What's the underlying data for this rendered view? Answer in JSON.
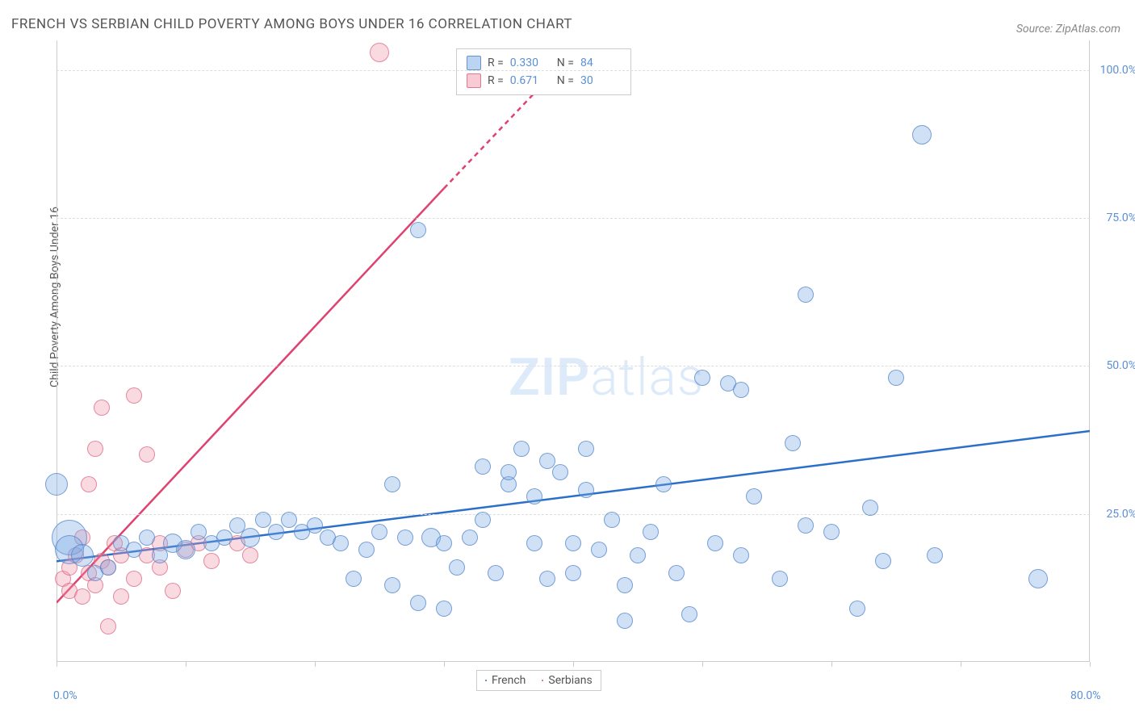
{
  "title": "FRENCH VS SERBIAN CHILD POVERTY AMONG BOYS UNDER 16 CORRELATION CHART",
  "source": "Source: ZipAtlas.com",
  "ylabel": "Child Poverty Among Boys Under 16",
  "watermark_bold": "ZIP",
  "watermark_light": "atlas",
  "chart": {
    "type": "scatter",
    "xlim": [
      0,
      80
    ],
    "ylim": [
      0,
      105
    ],
    "x_ticks": [
      0,
      10,
      20,
      30,
      40,
      50,
      60,
      70,
      80
    ],
    "x_tick_labels": {
      "0": "0.0%",
      "80": "80.0%"
    },
    "y_ticks": [
      25,
      50,
      75,
      100
    ],
    "y_tick_labels": {
      "25": "25.0%",
      "50": "50.0%",
      "75": "75.0%",
      "100": "100.0%"
    },
    "grid_color": "#dddddd",
    "background_color": "#ffffff",
    "series": {
      "french": {
        "label": "French",
        "color_fill": "rgba(120,170,230,0.35)",
        "color_stroke": "rgba(80,130,200,0.7)",
        "trend_color": "#2c6fc9",
        "trend": {
          "x1": 0,
          "y1": 17,
          "x2": 80,
          "y2": 39
        },
        "R": "0.330",
        "N": "84",
        "points": [
          {
            "x": 0,
            "y": 30,
            "r": 14
          },
          {
            "x": 1,
            "y": 21,
            "r": 22
          },
          {
            "x": 1,
            "y": 19,
            "r": 18
          },
          {
            "x": 2,
            "y": 18,
            "r": 14
          },
          {
            "x": 3,
            "y": 15,
            "r": 10
          },
          {
            "x": 4,
            "y": 16,
            "r": 10
          },
          {
            "x": 5,
            "y": 20,
            "r": 10
          },
          {
            "x": 6,
            "y": 19,
            "r": 10
          },
          {
            "x": 7,
            "y": 21,
            "r": 10
          },
          {
            "x": 8,
            "y": 18,
            "r": 10
          },
          {
            "x": 9,
            "y": 20,
            "r": 12
          },
          {
            "x": 10,
            "y": 19,
            "r": 12
          },
          {
            "x": 11,
            "y": 22,
            "r": 10
          },
          {
            "x": 12,
            "y": 20,
            "r": 10
          },
          {
            "x": 13,
            "y": 21,
            "r": 10
          },
          {
            "x": 14,
            "y": 23,
            "r": 10
          },
          {
            "x": 15,
            "y": 21,
            "r": 12
          },
          {
            "x": 16,
            "y": 24,
            "r": 10
          },
          {
            "x": 17,
            "y": 22,
            "r": 10
          },
          {
            "x": 18,
            "y": 24,
            "r": 10
          },
          {
            "x": 19,
            "y": 22,
            "r": 10
          },
          {
            "x": 20,
            "y": 23,
            "r": 10
          },
          {
            "x": 21,
            "y": 21,
            "r": 10
          },
          {
            "x": 22,
            "y": 20,
            "r": 10
          },
          {
            "x": 23,
            "y": 14,
            "r": 10
          },
          {
            "x": 24,
            "y": 19,
            "r": 10
          },
          {
            "x": 25,
            "y": 22,
            "r": 10
          },
          {
            "x": 26,
            "y": 13,
            "r": 10
          },
          {
            "x": 26,
            "y": 30,
            "r": 10
          },
          {
            "x": 27,
            "y": 21,
            "r": 10
          },
          {
            "x": 28,
            "y": 10,
            "r": 10
          },
          {
            "x": 28,
            "y": 73,
            "r": 10
          },
          {
            "x": 29,
            "y": 21,
            "r": 12
          },
          {
            "x": 30,
            "y": 9,
            "r": 10
          },
          {
            "x": 30,
            "y": 20,
            "r": 10
          },
          {
            "x": 31,
            "y": 16,
            "r": 10
          },
          {
            "x": 32,
            "y": 21,
            "r": 10
          },
          {
            "x": 33,
            "y": 24,
            "r": 10
          },
          {
            "x": 33,
            "y": 33,
            "r": 10
          },
          {
            "x": 34,
            "y": 15,
            "r": 10
          },
          {
            "x": 35,
            "y": 30,
            "r": 10
          },
          {
            "x": 35,
            "y": 32,
            "r": 10
          },
          {
            "x": 36,
            "y": 36,
            "r": 10
          },
          {
            "x": 37,
            "y": 20,
            "r": 10
          },
          {
            "x": 37,
            "y": 28,
            "r": 10
          },
          {
            "x": 38,
            "y": 14,
            "r": 10
          },
          {
            "x": 38,
            "y": 34,
            "r": 10
          },
          {
            "x": 39,
            "y": 32,
            "r": 10
          },
          {
            "x": 40,
            "y": 15,
            "r": 10
          },
          {
            "x": 40,
            "y": 20,
            "r": 10
          },
          {
            "x": 41,
            "y": 29,
            "r": 10
          },
          {
            "x": 41,
            "y": 36,
            "r": 10
          },
          {
            "x": 42,
            "y": 19,
            "r": 10
          },
          {
            "x": 43,
            "y": 24,
            "r": 10
          },
          {
            "x": 44,
            "y": 13,
            "r": 10
          },
          {
            "x": 44,
            "y": 7,
            "r": 10
          },
          {
            "x": 45,
            "y": 18,
            "r": 10
          },
          {
            "x": 46,
            "y": 22,
            "r": 10
          },
          {
            "x": 47,
            "y": 30,
            "r": 10
          },
          {
            "x": 48,
            "y": 15,
            "r": 10
          },
          {
            "x": 49,
            "y": 8,
            "r": 10
          },
          {
            "x": 50,
            "y": 48,
            "r": 10
          },
          {
            "x": 51,
            "y": 20,
            "r": 10
          },
          {
            "x": 52,
            "y": 47,
            "r": 10
          },
          {
            "x": 53,
            "y": 18,
            "r": 10
          },
          {
            "x": 53,
            "y": 46,
            "r": 10
          },
          {
            "x": 54,
            "y": 28,
            "r": 10
          },
          {
            "x": 56,
            "y": 14,
            "r": 10
          },
          {
            "x": 57,
            "y": 37,
            "r": 10
          },
          {
            "x": 58,
            "y": 23,
            "r": 10
          },
          {
            "x": 58,
            "y": 62,
            "r": 10
          },
          {
            "x": 60,
            "y": 22,
            "r": 10
          },
          {
            "x": 62,
            "y": 9,
            "r": 10
          },
          {
            "x": 63,
            "y": 26,
            "r": 10
          },
          {
            "x": 64,
            "y": 17,
            "r": 10
          },
          {
            "x": 65,
            "y": 48,
            "r": 10
          },
          {
            "x": 67,
            "y": 89,
            "r": 12
          },
          {
            "x": 68,
            "y": 18,
            "r": 10
          },
          {
            "x": 76,
            "y": 14,
            "r": 12
          }
        ]
      },
      "serbian": {
        "label": "Serbians",
        "color_fill": "rgba(240,150,170,0.35)",
        "color_stroke": "rgba(220,100,130,0.7)",
        "trend_color": "#e0426f",
        "trend": {
          "x1": 0,
          "y1": 10,
          "x2": 30,
          "y2": 80
        },
        "trend_dashed_extension": {
          "x1": 30,
          "y1": 80,
          "x2": 40,
          "y2": 103
        },
        "R": "0.671",
        "N": "30",
        "points": [
          {
            "x": 0.5,
            "y": 14,
            "r": 10
          },
          {
            "x": 1,
            "y": 16,
            "r": 10
          },
          {
            "x": 1,
            "y": 12,
            "r": 10
          },
          {
            "x": 1.5,
            "y": 18,
            "r": 10
          },
          {
            "x": 2,
            "y": 11,
            "r": 10
          },
          {
            "x": 2,
            "y": 21,
            "r": 10
          },
          {
            "x": 2.5,
            "y": 15,
            "r": 10
          },
          {
            "x": 2.5,
            "y": 30,
            "r": 10
          },
          {
            "x": 3,
            "y": 13,
            "r": 10
          },
          {
            "x": 3,
            "y": 36,
            "r": 10
          },
          {
            "x": 3.5,
            "y": 17,
            "r": 10
          },
          {
            "x": 3.5,
            "y": 43,
            "r": 10
          },
          {
            "x": 4,
            "y": 6,
            "r": 10
          },
          {
            "x": 4,
            "y": 16,
            "r": 10
          },
          {
            "x": 4.5,
            "y": 20,
            "r": 10
          },
          {
            "x": 5,
            "y": 11,
            "r": 10
          },
          {
            "x": 5,
            "y": 18,
            "r": 10
          },
          {
            "x": 6,
            "y": 14,
            "r": 10
          },
          {
            "x": 6,
            "y": 45,
            "r": 10
          },
          {
            "x": 7,
            "y": 18,
            "r": 10
          },
          {
            "x": 7,
            "y": 35,
            "r": 10
          },
          {
            "x": 8,
            "y": 16,
            "r": 10
          },
          {
            "x": 8,
            "y": 20,
            "r": 10
          },
          {
            "x": 9,
            "y": 12,
            "r": 10
          },
          {
            "x": 10,
            "y": 19,
            "r": 10
          },
          {
            "x": 11,
            "y": 20,
            "r": 10
          },
          {
            "x": 12,
            "y": 17,
            "r": 10
          },
          {
            "x": 14,
            "y": 20,
            "r": 10
          },
          {
            "x": 15,
            "y": 18,
            "r": 10
          },
          {
            "x": 25,
            "y": 103,
            "r": 12
          }
        ]
      }
    },
    "stats_box_labels": {
      "R": "R =",
      "N": "N ="
    }
  }
}
